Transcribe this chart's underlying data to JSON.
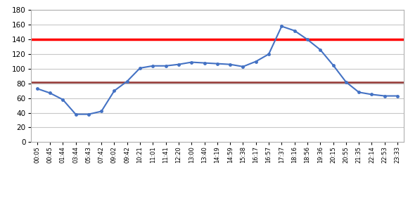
{
  "x_labels": [
    "00:05",
    "00:45",
    "01:44",
    "03:44",
    "05:43",
    "07:42",
    "09:02",
    "09:42",
    "10:21",
    "11:01",
    "11:41",
    "12:20",
    "13:00",
    "13:40",
    "14:19",
    "14:59",
    "15:38",
    "16:17",
    "16:57",
    "17:37",
    "18:16",
    "18:56",
    "19:36",
    "20:15",
    "20:55",
    "21:35",
    "22:14",
    "22:53",
    "23:33"
  ],
  "y_values": [
    73,
    67,
    58,
    38,
    38,
    42,
    70,
    83,
    101,
    104,
    104,
    106,
    109,
    108,
    107,
    106,
    103,
    110,
    120,
    158,
    152,
    140,
    126,
    105,
    82,
    68,
    65,
    63,
    63
  ],
  "overload_threshold": 82,
  "oil_flash_point": 140,
  "ylim": [
    0,
    180
  ],
  "yticks": [
    0,
    20,
    40,
    60,
    80,
    100,
    120,
    140,
    160,
    180
  ],
  "temp_line_color": "#4472C4",
  "overload_color": "#943634",
  "flash_color": "#FF0000",
  "bg_color": "#FFFFFF",
  "grid_color": "#C8C8C8",
  "figsize": [
    5.8,
    2.89
  ],
  "dpi": 100
}
